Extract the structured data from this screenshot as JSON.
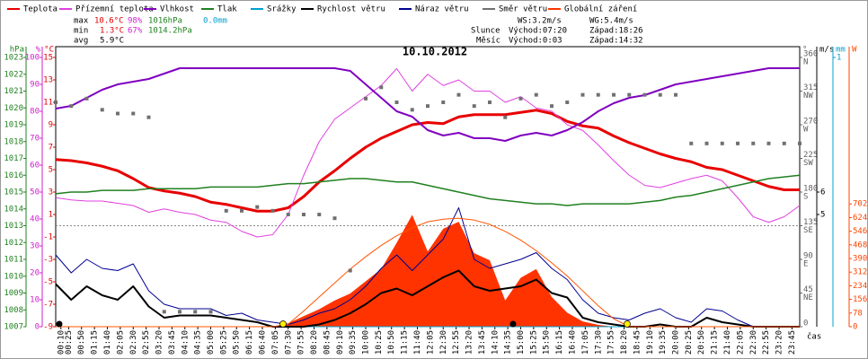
{
  "chart_data": {
    "type": "line",
    "title": "10.10.2012",
    "x_label": "čas",
    "stats": {
      "max": {
        "label": "max",
        "temp": "10.6°C",
        "hum": "98%",
        "pres": "1016hPa",
        "rain": "0.0mm"
      },
      "min": {
        "label": "min",
        "temp": "1.3°C",
        "hum": "67%",
        "pres": "1014.2hPa"
      },
      "avg": {
        "label": "avg",
        "temp": "5.9°C"
      },
      "ws": "WS:3.2m/s",
      "wg": "WG:5.4m/s",
      "sun": {
        "label": "Slunce",
        "rise": "Východ:07:20",
        "set": "Západ:18:26"
      },
      "moon": {
        "label": "Měsíc",
        "rise": "Východ:0:03",
        "set": "Západ:14:32"
      }
    },
    "xlim": [
      0,
      24
    ],
    "xticks": [
      {
        "value": 0.167,
        "label": "00:10"
      },
      {
        "value": 0.417,
        "label": "00:25"
      },
      {
        "value": 0.833,
        "label": "00:50"
      },
      {
        "value": 1.25,
        "label": "01:15"
      },
      {
        "value": 1.667,
        "label": "01:40"
      },
      {
        "value": 2.083,
        "label": "02:05"
      },
      {
        "value": 2.5,
        "label": "02:30"
      },
      {
        "value": 2.917,
        "label": "02:55"
      },
      {
        "value": 3.333,
        "label": "03:20"
      },
      {
        "value": 3.75,
        "label": "03:45"
      },
      {
        "value": 4.167,
        "label": "04:10"
      },
      {
        "value": 4.583,
        "label": "04:35"
      },
      {
        "value": 5,
        "label": "05:00"
      },
      {
        "value": 5.417,
        "label": "05:25"
      },
      {
        "value": 5.833,
        "label": "05:50"
      },
      {
        "value": 6.25,
        "label": "06:15"
      },
      {
        "value": 6.667,
        "label": "06:40"
      },
      {
        "value": 7.083,
        "label": "07:05"
      },
      {
        "value": 7.5,
        "label": "07:30"
      },
      {
        "value": 7.917,
        "label": "07:55"
      },
      {
        "value": 8.333,
        "label": "08:20"
      },
      {
        "value": 8.75,
        "label": "08:45"
      },
      {
        "value": 9.167,
        "label": "09:10"
      },
      {
        "value": 9.583,
        "label": "09:35"
      },
      {
        "value": 10,
        "label": "10:00"
      },
      {
        "value": 10.417,
        "label": "10:25"
      },
      {
        "value": 10.833,
        "label": "10:50"
      },
      {
        "value": 11.25,
        "label": "11:15"
      },
      {
        "value": 11.667,
        "label": "11:40"
      },
      {
        "value": 12.083,
        "label": "12:05"
      },
      {
        "value": 12.5,
        "label": "12:30"
      },
      {
        "value": 12.917,
        "label": "12:55"
      },
      {
        "value": 13.333,
        "label": "13:20"
      },
      {
        "value": 13.75,
        "label": "13:45"
      },
      {
        "value": 14.167,
        "label": "14:10"
      },
      {
        "value": 14.583,
        "label": "14:35"
      },
      {
        "value": 15,
        "label": "15:00"
      },
      {
        "value": 15.417,
        "label": "15:25"
      },
      {
        "value": 15.833,
        "label": "15:50"
      },
      {
        "value": 16.25,
        "label": "16:15"
      },
      {
        "value": 16.667,
        "label": "16:40"
      },
      {
        "value": 17.083,
        "label": "17:05"
      },
      {
        "value": 17.5,
        "label": "17:30"
      },
      {
        "value": 17.917,
        "label": "17:55"
      },
      {
        "value": 18.333,
        "label": "18:20"
      },
      {
        "value": 18.75,
        "label": "18:45"
      },
      {
        "value": 19.167,
        "label": "19:10"
      },
      {
        "value": 19.583,
        "label": "19:35"
      },
      {
        "value": 20,
        "label": "20:00"
      },
      {
        "value": 20.417,
        "label": "20:25"
      },
      {
        "value": 20.833,
        "label": "20:50"
      },
      {
        "value": 21.25,
        "label": "21:15"
      },
      {
        "value": 21.667,
        "label": "21:40"
      },
      {
        "value": 22.083,
        "label": "22:05"
      },
      {
        "value": 22.5,
        "label": "22:30"
      },
      {
        "value": 22.917,
        "label": "22:55"
      },
      {
        "value": 23.333,
        "label": "23:20"
      },
      {
        "value": 23.75,
        "label": "23:45"
      }
    ],
    "axes": {
      "pres": {
        "unit": "hPa",
        "color": "#208020",
        "ylim": [
          1007,
          1023
        ],
        "yticks": [
          1023,
          1022,
          1021,
          1020,
          1019,
          1018,
          1017,
          1016,
          1015,
          1014,
          1013,
          1012,
          1011,
          1010,
          1009,
          1008,
          1007
        ]
      },
      "hum": {
        "unit": "%",
        "color": "#d020d0",
        "ylim": [
          0,
          100
        ],
        "yticks": [
          100,
          90,
          80,
          70,
          60,
          50,
          40,
          30,
          20,
          10,
          0
        ]
      },
      "temp": {
        "unit": "°C",
        "color": "#e00000",
        "ylim": [
          -9,
          15
        ],
        "yticks": [
          15,
          13,
          11,
          9,
          7,
          5,
          3,
          1,
          -1,
          -3,
          -5,
          -7,
          -9
        ]
      },
      "dir": {
        "unit": "°",
        "color": "#606060",
        "ylim": [
          0,
          360
        ],
        "yticks": [
          360,
          315,
          270,
          225,
          180,
          135,
          90,
          45,
          0
        ],
        "names": [
          "N",
          "NW",
          "W",
          "SW",
          "S",
          "SE",
          "E",
          "NE"
        ]
      },
      "wind": {
        "unit": "m/s",
        "color": "#000000",
        "ylim": [
          0,
          12
        ],
        "yticks": [
          6,
          5
        ]
      },
      "rain": {
        "unit": "mm",
        "color": "#00a0d0",
        "ylim": [
          0,
          1
        ],
        "yticks": [
          1
        ]
      },
      "rad": {
        "unit": "W",
        "color": "#ff4400",
        "ylim": [
          0,
          1540
        ],
        "yticks": [
          702,
          624,
          546,
          468,
          390,
          312,
          234,
          156,
          78,
          0
        ]
      }
    },
    "zero_line": true,
    "x": [
      0,
      0.5,
      1,
      1.5,
      2,
      2.5,
      3,
      3.5,
      4,
      4.5,
      5,
      5.5,
      6,
      6.5,
      7,
      7.5,
      8,
      8.5,
      9,
      9.5,
      10,
      10.5,
      11,
      11.5,
      12,
      12.5,
      13,
      13.5,
      14,
      14.5,
      15,
      15.5,
      16,
      16.5,
      17,
      17.5,
      18,
      18.5,
      19,
      19.5,
      20,
      20.5,
      21,
      21.5,
      22,
      22.5,
      23,
      23.5,
      24
    ],
    "series": [
      {
        "name": "Teplota",
        "type": "line",
        "axis": "temp",
        "color": "#e80000",
        "width": 3,
        "values": [
          5.9,
          5.8,
          5.6,
          5.3,
          4.9,
          4.2,
          3.4,
          3.1,
          2.9,
          2.6,
          2.1,
          1.9,
          1.6,
          1.3,
          1.3,
          1.6,
          2.6,
          3.9,
          4.9,
          6.0,
          7.0,
          7.8,
          8.4,
          9.0,
          9.2,
          9.1,
          9.7,
          9.9,
          9.9,
          9.9,
          10.1,
          10.3,
          10.0,
          9.3,
          8.9,
          8.7,
          8.0,
          7.4,
          6.9,
          6.4,
          6.0,
          5.7,
          5.2,
          5.0,
          4.5,
          4.0,
          3.5,
          3.2,
          3.2
        ]
      },
      {
        "name": "Přízemní teplota",
        "type": "line",
        "axis": "temp",
        "color": "#e040e0",
        "width": 1,
        "values": [
          2.5,
          2.3,
          2.2,
          2.2,
          2.0,
          1.8,
          1.2,
          1.5,
          1.2,
          1.0,
          0.5,
          0.3,
          -0.5,
          -1.0,
          -0.8,
          1.0,
          4.5,
          7.5,
          9.5,
          10.5,
          11.5,
          12.5,
          14.0,
          12.0,
          13.5,
          12.5,
          13.0,
          12.0,
          12.0,
          11.0,
          11.5,
          10.5,
          10.2,
          9.0,
          8.5,
          7.2,
          5.8,
          4.5,
          3.6,
          3.4,
          3.8,
          4.2,
          4.5,
          4.0,
          2.5,
          0.8,
          0.3,
          0.8,
          1.8
        ]
      },
      {
        "name": "Vlhkost",
        "type": "line",
        "axis": "hum",
        "color": "#8000c0",
        "width": 2,
        "values": [
          81,
          82,
          85,
          88,
          90,
          91,
          92,
          94,
          96,
          96,
          96,
          96,
          96,
          96,
          96,
          96,
          96,
          96,
          96,
          95,
          90,
          85,
          80,
          78,
          73,
          71,
          72,
          70,
          70,
          69,
          71,
          72,
          71,
          73,
          76,
          80,
          83,
          85,
          86,
          88,
          90,
          91,
          92,
          93,
          94,
          95,
          96,
          96,
          96
        ]
      },
      {
        "name": "Tlak",
        "type": "line",
        "axis": "pres",
        "color": "#208020",
        "width": 1.5,
        "values": [
          1014.9,
          1015.0,
          1015.0,
          1015.1,
          1015.1,
          1015.1,
          1015.2,
          1015.2,
          1015.2,
          1015.2,
          1015.3,
          1015.3,
          1015.3,
          1015.3,
          1015.4,
          1015.5,
          1015.5,
          1015.6,
          1015.7,
          1015.8,
          1015.8,
          1015.7,
          1015.6,
          1015.6,
          1015.4,
          1015.2,
          1015.0,
          1014.8,
          1014.6,
          1014.5,
          1014.4,
          1014.3,
          1014.3,
          1014.2,
          1014.3,
          1014.3,
          1014.3,
          1014.3,
          1014.4,
          1014.5,
          1014.7,
          1014.8,
          1015.0,
          1015.2,
          1015.4,
          1015.6,
          1015.8,
          1015.9,
          1016.0
        ]
      },
      {
        "name": "Srážky",
        "type": "line",
        "axis": "rain",
        "color": "#00a0d0",
        "width": 1,
        "values": [
          0,
          0,
          0,
          0,
          0,
          0,
          0,
          0,
          0,
          0,
          0,
          0,
          0,
          0,
          0,
          0,
          0,
          0,
          0,
          0,
          0,
          0,
          0,
          0,
          0,
          0,
          0,
          0,
          0,
          0,
          0,
          0,
          0,
          0,
          0,
          0,
          0,
          0,
          0,
          0,
          0,
          0,
          0,
          0,
          0,
          0,
          0,
          0,
          0
        ]
      },
      {
        "name": "Rychlost větru",
        "type": "line",
        "axis": "wind",
        "color": "#000000",
        "width": 2,
        "values": [
          1.9,
          1.2,
          1.8,
          1.4,
          1.2,
          1.8,
          0.9,
          0.4,
          0.5,
          0.5,
          0.5,
          0.4,
          0.3,
          0.2,
          0.0,
          0.0,
          0.0,
          0.1,
          0.3,
          0.6,
          1.0,
          1.5,
          1.7,
          1.4,
          1.8,
          2.2,
          2.5,
          1.8,
          1.6,
          1.7,
          1.8,
          2.1,
          1.5,
          1.3,
          0.4,
          0.2,
          0.1,
          0.0,
          0.0,
          0.1,
          0.0,
          0.0,
          0.4,
          0.2,
          0.1,
          0.0,
          0.0,
          0.0,
          0.0
        ]
      },
      {
        "name": "Náraz větru",
        "type": "line",
        "axis": "wind",
        "color": "#000090",
        "width": 1,
        "values": [
          3.2,
          2.4,
          3.0,
          2.6,
          2.5,
          2.8,
          1.6,
          1.0,
          0.8,
          0.8,
          0.8,
          0.5,
          0.6,
          0.3,
          0.2,
          0.1,
          0.3,
          0.6,
          0.8,
          1.2,
          1.8,
          2.6,
          3.2,
          2.5,
          3.2,
          3.9,
          5.3,
          3.0,
          2.6,
          2.8,
          3.0,
          3.3,
          2.6,
          2.1,
          1.2,
          0.6,
          0.4,
          0.3,
          0.6,
          0.8,
          0.4,
          0.2,
          0.8,
          0.7,
          0.3,
          0.0,
          0.0,
          0.0,
          0.0
        ]
      },
      {
        "name": "Směr větru",
        "type": "scatter",
        "axis": "dir",
        "color": "#707070",
        "values": [
          300,
          295,
          305,
          290,
          285,
          285,
          280,
          20,
          20,
          20,
          20,
          155,
          155,
          160,
          155,
          150,
          150,
          150,
          145,
          75,
          305,
          320,
          300,
          290,
          295,
          300,
          310,
          295,
          300,
          280,
          305,
          310,
          295,
          300,
          310,
          310,
          310,
          310,
          310,
          310,
          310,
          245,
          245,
          245,
          245,
          245,
          245,
          245,
          245
        ]
      },
      {
        "name": "Globální záření",
        "type": "area",
        "axis": "rad",
        "color": "#ff3300",
        "values": [
          0,
          0,
          0,
          0,
          0,
          0,
          0,
          0,
          0,
          0,
          0,
          0,
          0,
          0,
          0,
          20,
          60,
          100,
          150,
          190,
          260,
          330,
          480,
          640,
          430,
          560,
          600,
          420,
          380,
          150,
          280,
          330,
          170,
          80,
          30,
          10,
          0,
          0,
          0,
          0,
          0,
          0,
          0,
          0,
          0,
          0,
          0,
          0,
          0
        ]
      },
      {
        "type": "line",
        "axis": "rad",
        "color": "#ff5500",
        "width": 1,
        "values": [
          0,
          0,
          0,
          0,
          0,
          0,
          0,
          0,
          0,
          0,
          0,
          0,
          0,
          0,
          0,
          15,
          90,
          170,
          250,
          330,
          400,
          465,
          520,
          565,
          600,
          615,
          620,
          610,
          585,
          545,
          495,
          435,
          365,
          290,
          205,
          120,
          45,
          0,
          0,
          0,
          0,
          0,
          0,
          0,
          0,
          0,
          0,
          0,
          0
        ]
      }
    ]
  }
}
